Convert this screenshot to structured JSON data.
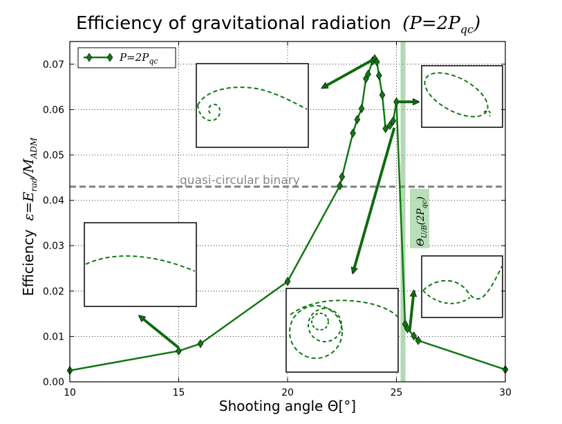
{
  "chart_data": {
    "type": "line",
    "title": "Efficiency of gravitational radiation",
    "title_math": "(P=2P",
    "title_math_sub": "qc",
    "title_math_close": ")",
    "xlabel": "Shooting angle Θ[°]",
    "ylabel_text": "Efficiency",
    "ylabel_math": "ε=E",
    "ylabel_sub1": "rad",
    "ylabel_mid": "/M",
    "ylabel_sub2": "ADM",
    "xlim": [
      10,
      30
    ],
    "ylim": [
      0.0,
      0.075
    ],
    "x_ticks": [
      10,
      15,
      20,
      25,
      30
    ],
    "x_tick_labels": [
      "10",
      "15",
      "20",
      "25",
      "30"
    ],
    "y_ticks": [
      0.0,
      0.01,
      0.02,
      0.03,
      0.04,
      0.05,
      0.06,
      0.07
    ],
    "y_tick_labels": [
      "0.00",
      "0.01",
      "0.02",
      "0.03",
      "0.04",
      "0.05",
      "0.06",
      "0.07"
    ],
    "grid": true,
    "series": [
      {
        "name": "P=2Pqc",
        "legend_main": "P=2P",
        "legend_sub": "qc",
        "color": "#117711",
        "marker": "diamond",
        "points": [
          [
            10.0,
            0.0025
          ],
          [
            15.0,
            0.0068
          ],
          [
            16.0,
            0.0084
          ],
          [
            20.0,
            0.0221
          ],
          [
            22.4,
            0.0432
          ],
          [
            22.5,
            0.0452
          ],
          [
            23.0,
            0.0548
          ],
          [
            23.2,
            0.0578
          ],
          [
            23.4,
            0.0602
          ],
          [
            23.6,
            0.0668
          ],
          [
            23.7,
            0.0678
          ],
          [
            23.9,
            0.0707
          ],
          [
            24.0,
            0.0712
          ],
          [
            24.1,
            0.0705
          ],
          [
            24.2,
            0.0675
          ],
          [
            24.35,
            0.0632
          ],
          [
            24.5,
            0.0558
          ],
          [
            24.7,
            0.0565
          ],
          [
            24.85,
            0.0575
          ],
          [
            25.0,
            0.0617
          ],
          [
            25.4,
            0.0127
          ],
          [
            25.5,
            0.0117
          ],
          [
            25.8,
            0.0101
          ],
          [
            26.0,
            0.0091
          ],
          [
            30.0,
            0.0027
          ]
        ]
      }
    ],
    "reference_line": {
      "y": 0.043,
      "label": "quasi-circular binary",
      "color": "#808080"
    },
    "vertical_band": {
      "x": 25.3,
      "label_main": "Θ",
      "label_sub": "U/B",
      "label_rest": "(2P",
      "label_sub2": "qc",
      "label_close": ")",
      "color": "#7fbf7f"
    },
    "inset_arrows": [
      {
        "from": [
          24.0,
          0.0712
        ],
        "to": [
          21.6,
          0.0648
        ]
      },
      {
        "from": [
          25.0,
          0.0617
        ],
        "to": [
          26.0,
          0.0617
        ]
      },
      {
        "from": [
          15.0,
          0.0075
        ],
        "to": [
          13.2,
          0.0145
        ]
      },
      {
        "from": [
          24.9,
          0.056
        ],
        "to": [
          23.0,
          0.024
        ]
      },
      {
        "from": [
          25.6,
          0.011
        ],
        "to": [
          25.8,
          0.02
        ]
      }
    ]
  }
}
